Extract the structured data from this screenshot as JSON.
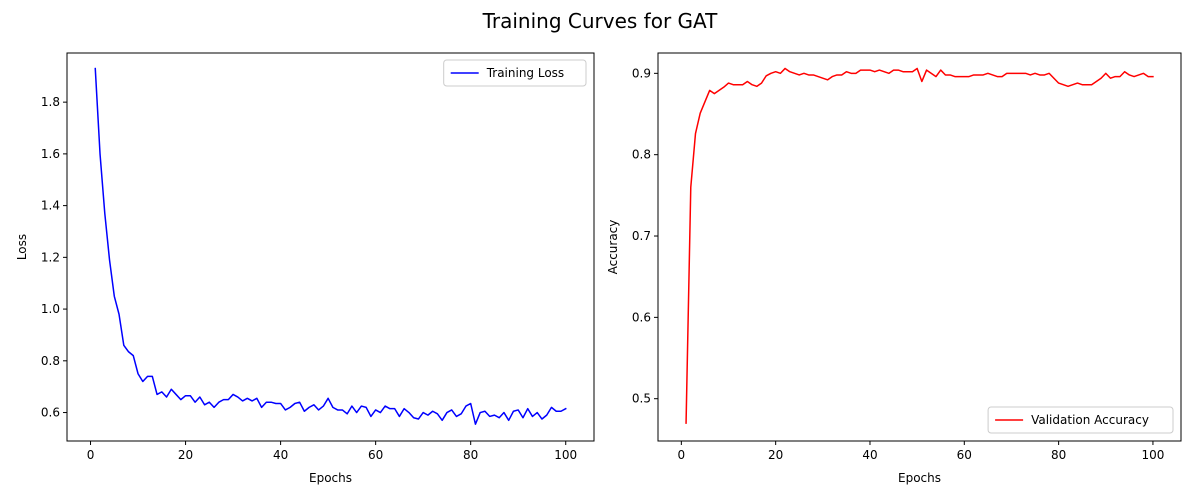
{
  "figure_title": "Training Curves for GAT",
  "chart_data": [
    {
      "type": "line",
      "title": "",
      "xlabel": "Epochs",
      "ylabel": "Loss",
      "xlim": [
        -4.95,
        105.95
      ],
      "ylim": [
        0.49,
        1.99
      ],
      "xticks": [
        0,
        20,
        40,
        60,
        80,
        100
      ],
      "yticks": [
        0.6,
        0.8,
        1.0,
        1.2,
        1.4,
        1.6,
        1.8
      ],
      "ytick_decimals": 1,
      "legend_position": "top-right",
      "grid": false,
      "series": [
        {
          "name": "Training Loss",
          "color": "#0000ff",
          "x": [
            1,
            2,
            3,
            4,
            5,
            6,
            7,
            8,
            9,
            10,
            11,
            12,
            13,
            14,
            15,
            16,
            17,
            18,
            19,
            20,
            21,
            22,
            23,
            24,
            25,
            26,
            27,
            28,
            29,
            30,
            31,
            32,
            33,
            34,
            35,
            36,
            37,
            38,
            39,
            40,
            41,
            42,
            43,
            44,
            45,
            46,
            47,
            48,
            49,
            50,
            51,
            52,
            53,
            54,
            55,
            56,
            57,
            58,
            59,
            60,
            61,
            62,
            63,
            64,
            65,
            66,
            67,
            68,
            69,
            70,
            71,
            72,
            73,
            74,
            75,
            76,
            77,
            78,
            79,
            80,
            81,
            82,
            83,
            84,
            85,
            86,
            87,
            88,
            89,
            90,
            91,
            92,
            93,
            94,
            95,
            96,
            97,
            98,
            99,
            100
          ],
          "y": [
            1.93,
            1.6,
            1.37,
            1.19,
            1.05,
            0.98,
            0.86,
            0.835,
            0.82,
            0.75,
            0.72,
            0.74,
            0.74,
            0.67,
            0.68,
            0.66,
            0.69,
            0.67,
            0.65,
            0.665,
            0.665,
            0.64,
            0.66,
            0.63,
            0.64,
            0.62,
            0.64,
            0.65,
            0.65,
            0.67,
            0.66,
            0.645,
            0.655,
            0.645,
            0.655,
            0.62,
            0.64,
            0.64,
            0.635,
            0.635,
            0.61,
            0.62,
            0.635,
            0.64,
            0.605,
            0.62,
            0.63,
            0.61,
            0.625,
            0.655,
            0.62,
            0.61,
            0.61,
            0.595,
            0.625,
            0.6,
            0.625,
            0.62,
            0.585,
            0.61,
            0.6,
            0.625,
            0.615,
            0.615,
            0.585,
            0.615,
            0.6,
            0.58,
            0.575,
            0.6,
            0.59,
            0.605,
            0.595,
            0.57,
            0.6,
            0.61,
            0.585,
            0.595,
            0.625,
            0.635,
            0.555,
            0.6,
            0.605,
            0.585,
            0.59,
            0.58,
            0.6,
            0.57,
            0.605,
            0.61,
            0.58,
            0.615,
            0.585,
            0.6,
            0.575,
            0.59,
            0.62,
            0.605,
            0.605,
            0.615
          ]
        }
      ]
    },
    {
      "type": "line",
      "title": "",
      "xlabel": "Epochs",
      "ylabel": "Accuracy",
      "xlim": [
        -4.95,
        105.95
      ],
      "ylim": [
        0.448,
        0.925
      ],
      "xticks": [
        0,
        20,
        40,
        60,
        80,
        100
      ],
      "yticks": [
        0.5,
        0.6,
        0.7,
        0.8,
        0.9
      ],
      "ytick_decimals": 1,
      "legend_position": "lower-right",
      "grid": false,
      "series": [
        {
          "name": "Validation Accuracy",
          "color": "#ff0000",
          "x": [
            1,
            2,
            3,
            4,
            5,
            6,
            7,
            8,
            9,
            10,
            11,
            12,
            13,
            14,
            15,
            16,
            17,
            18,
            19,
            20,
            21,
            22,
            23,
            24,
            25,
            26,
            27,
            28,
            29,
            30,
            31,
            32,
            33,
            34,
            35,
            36,
            37,
            38,
            39,
            40,
            41,
            42,
            43,
            44,
            45,
            46,
            47,
            48,
            49,
            50,
            51,
            52,
            53,
            54,
            55,
            56,
            57,
            58,
            59,
            60,
            61,
            62,
            63,
            64,
            65,
            66,
            67,
            68,
            69,
            70,
            71,
            72,
            73,
            74,
            75,
            76,
            77,
            78,
            79,
            80,
            81,
            82,
            83,
            84,
            85,
            86,
            87,
            88,
            89,
            90,
            91,
            92,
            93,
            94,
            95,
            96,
            97,
            98,
            99,
            100
          ],
          "y": [
            0.47,
            0.76,
            0.826,
            0.851,
            0.865,
            0.879,
            0.875,
            0.879,
            0.883,
            0.888,
            0.886,
            0.886,
            0.886,
            0.89,
            0.886,
            0.884,
            0.888,
            0.897,
            0.9,
            0.902,
            0.9,
            0.906,
            0.902,
            0.9,
            0.898,
            0.9,
            0.898,
            0.898,
            0.896,
            0.894,
            0.892,
            0.896,
            0.898,
            0.898,
            0.902,
            0.9,
            0.9,
            0.904,
            0.904,
            0.904,
            0.902,
            0.904,
            0.902,
            0.9,
            0.904,
            0.904,
            0.902,
            0.902,
            0.902,
            0.906,
            0.89,
            0.904,
            0.9,
            0.896,
            0.904,
            0.898,
            0.898,
            0.896,
            0.896,
            0.896,
            0.896,
            0.898,
            0.898,
            0.898,
            0.9,
            0.898,
            0.896,
            0.896,
            0.9,
            0.9,
            0.9,
            0.9,
            0.9,
            0.898,
            0.9,
            0.898,
            0.898,
            0.9,
            0.894,
            0.888,
            0.886,
            0.884,
            0.886,
            0.888,
            0.886,
            0.886,
            0.886,
            0.89,
            0.894,
            0.9,
            0.894,
            0.896,
            0.896,
            0.902,
            0.898,
            0.896,
            0.898,
            0.9,
            0.896,
            0.896
          ]
        }
      ]
    }
  ]
}
